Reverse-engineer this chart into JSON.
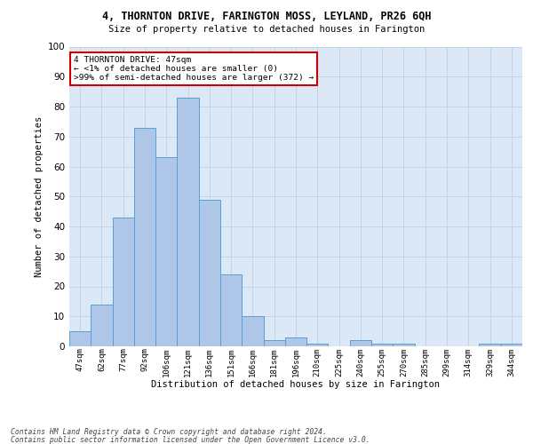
{
  "title1": "4, THORNTON DRIVE, FARINGTON MOSS, LEYLAND, PR26 6QH",
  "title2": "Size of property relative to detached houses in Farington",
  "xlabel": "Distribution of detached houses by size in Farington",
  "ylabel": "Number of detached properties",
  "bar_labels": [
    "47sqm",
    "62sqm",
    "77sqm",
    "92sqm",
    "106sqm",
    "121sqm",
    "136sqm",
    "151sqm",
    "166sqm",
    "181sqm",
    "196sqm",
    "210sqm",
    "225sqm",
    "240sqm",
    "255sqm",
    "270sqm",
    "285sqm",
    "299sqm",
    "314sqm",
    "329sqm",
    "344sqm"
  ],
  "bar_values": [
    5,
    14,
    43,
    73,
    63,
    83,
    49,
    24,
    10,
    2,
    3,
    1,
    0,
    2,
    1,
    1,
    0,
    0,
    0,
    1,
    1
  ],
  "bar_color": "#aec6e8",
  "bar_edge_color": "#5a9fd4",
  "annotation_box_text": "4 THORNTON DRIVE: 47sqm\n← <1% of detached houses are smaller (0)\n>99% of semi-detached houses are larger (372) →",
  "annotation_box_color": "#ffffff",
  "annotation_box_edge_color": "#cc0000",
  "ylim": [
    0,
    100
  ],
  "yticks": [
    0,
    10,
    20,
    30,
    40,
    50,
    60,
    70,
    80,
    90,
    100
  ],
  "grid_color": "#c0d0e8",
  "bg_color": "#dce8f5",
  "footnote1": "Contains HM Land Registry data © Crown copyright and database right 2024.",
  "footnote2": "Contains public sector information licensed under the Open Government Licence v3.0."
}
